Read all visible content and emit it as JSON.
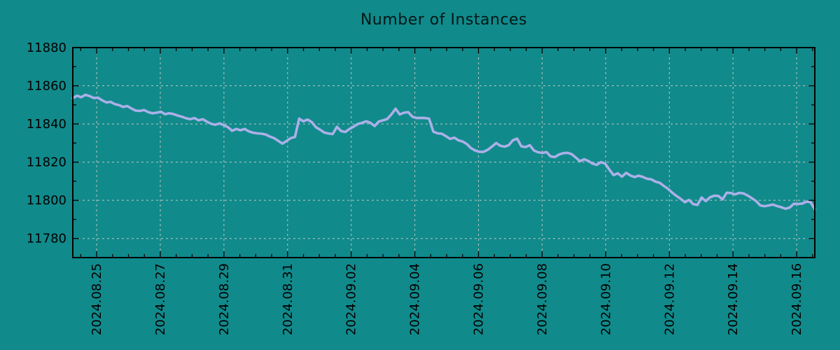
{
  "title": "Number of Instances",
  "colors": {
    "background": "#118a8b",
    "line": "#abb0e8",
    "grid": "#c5ccc6",
    "axis": "#000000",
    "text": "#000000"
  },
  "chart_data": {
    "type": "line",
    "title": "Number of Instances",
    "xlabel": "",
    "ylabel": "",
    "legend": "none",
    "grid": true,
    "xlim_days": [
      -0.75,
      22.57
    ],
    "x_tick_days": [
      0,
      2,
      4,
      6,
      8,
      10,
      12,
      14,
      16,
      18,
      20,
      22
    ],
    "x_tick_labels": [
      "2024.08.25",
      "2024.08.27",
      "2024.08.29",
      "2024.08.31",
      "2024.09.02",
      "2024.09.04",
      "2024.09.06",
      "2024.09.08",
      "2024.09.10",
      "2024.09.12",
      "2024.09.14",
      "2024.09.16"
    ],
    "x_minor_step_days": 0.5,
    "ylim": [
      11770,
      11880
    ],
    "y_ticks": [
      11780,
      11800,
      11820,
      11840,
      11860,
      11880
    ],
    "y_minor_step": 10,
    "series": [
      {
        "name": "instances",
        "x_start_day": -0.75,
        "x_end_day": 22.57,
        "values": [
          11853.5,
          11854.8,
          11854.0,
          11855.3,
          11854.6,
          11853.6,
          11853.8,
          11852.4,
          11851.3,
          11851.6,
          11850.4,
          11849.9,
          11848.9,
          11849.4,
          11848.1,
          11847.0,
          11846.8,
          11847.3,
          11846.2,
          11845.6,
          11845.9,
          11846.4,
          11845.1,
          11845.6,
          11845.2,
          11844.4,
          11843.8,
          11843.0,
          11842.5,
          11843.1,
          11841.9,
          11842.5,
          11841.2,
          11840.1,
          11839.6,
          11840.3,
          11839.4,
          11838.3,
          11836.4,
          11837.4,
          11836.7,
          11837.4,
          11836.1,
          11835.4,
          11835.1,
          11834.9,
          11834.5,
          11833.4,
          11832.6,
          11831.2,
          11829.7,
          11831.1,
          11832.6,
          11833.2,
          11842.8,
          11841.4,
          11842.3,
          11841.0,
          11838.3,
          11837.0,
          11835.5,
          11835.0,
          11834.7,
          11838.5,
          11836.3,
          11835.8,
          11837.4,
          11838.6,
          11840.0,
          11840.6,
          11841.4,
          11840.6,
          11838.9,
          11841.3,
          11841.9,
          11842.6,
          11845.0,
          11848.0,
          11845.0,
          11845.9,
          11846.2,
          11843.8,
          11843.1,
          11843.2,
          11843.1,
          11842.8,
          11836.0,
          11835.1,
          11834.9,
          11833.6,
          11832.2,
          11832.8,
          11831.4,
          11830.8,
          11829.5,
          11827.3,
          11826.1,
          11825.4,
          11825.4,
          11826.5,
          11828.2,
          11830.0,
          11828.6,
          11828.1,
          11828.9,
          11831.5,
          11832.3,
          11828.3,
          11827.9,
          11828.9,
          11826.1,
          11825.2,
          11824.8,
          11825.3,
          11823.0,
          11822.7,
          11824.0,
          11824.7,
          11824.9,
          11824.2,
          11822.4,
          11820.5,
          11821.5,
          11820.6,
          11819.2,
          11818.6,
          11820.0,
          11819.2,
          11816.0,
          11813.2,
          11814.2,
          11812.4,
          11814.4,
          11813.0,
          11812.2,
          11812.9,
          11812.2,
          11811.3,
          11811.0,
          11809.8,
          11809.2,
          11807.5,
          11806.0,
          11804.0,
          11802.3,
          11800.8,
          11799.0,
          11800.2,
          11798.0,
          11797.6,
          11801.5,
          11799.6,
          11801.6,
          11802.4,
          11802.3,
          11800.5,
          11804.0,
          11803.8,
          11803.1,
          11803.9,
          11803.6,
          11802.5,
          11801.1,
          11799.6,
          11797.3,
          11796.9,
          11797.3,
          11797.8,
          11797.0,
          11796.4,
          11795.6,
          11796.2,
          11798.2,
          11798.1,
          11798.3,
          11799.3,
          11799.0,
          11795.3
        ]
      }
    ]
  }
}
